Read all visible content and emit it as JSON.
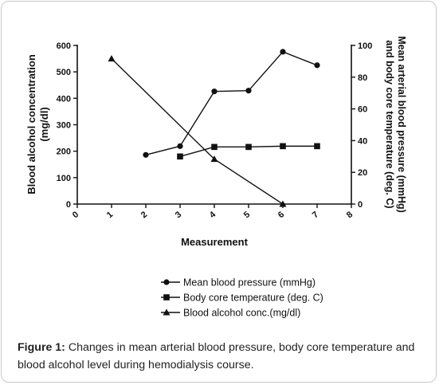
{
  "chart_data": {
    "type": "line",
    "xlabel": "Measurement",
    "ylabel_left": [
      "Blood alcohol concentration",
      "(mg/dl)"
    ],
    "ylabel_right": [
      "Mean arterial blood pressure (mmHg)",
      "and body core temperature (deg. C)"
    ],
    "xlim": [
      0,
      8
    ],
    "x_ticks": [
      "0",
      "1",
      "2",
      "3",
      "4",
      "5",
      "6",
      "7",
      "8"
    ],
    "ylim_left": [
      0,
      600
    ],
    "y_ticks_left": [
      "0",
      "100",
      "200",
      "300",
      "400",
      "500",
      "600"
    ],
    "ylim_right": [
      0,
      100
    ],
    "y_ticks_right": [
      "0",
      "20",
      "40",
      "60",
      "80",
      "100"
    ],
    "grid": false,
    "legend_position": "bottom",
    "series": [
      {
        "name": "Mean blood pressure (mmHg)",
        "axis": "right",
        "marker": "circle",
        "x": [
          2,
          3,
          4,
          5,
          6,
          7
        ],
        "y": [
          31,
          36.5,
          71,
          71.5,
          96,
          87.5
        ]
      },
      {
        "name": "Body core temperature (deg. C)",
        "axis": "right",
        "marker": "square",
        "x": [
          3,
          4,
          5,
          6,
          7
        ],
        "y": [
          30,
          36,
          36,
          36.5,
          36.5
        ]
      },
      {
        "name": "Blood alcohol conc.(mg/dl)",
        "axis": "left",
        "marker": "triangle",
        "x": [
          1,
          4,
          6
        ],
        "y": [
          550,
          170,
          0
        ]
      }
    ]
  },
  "caption": {
    "label": "Figure 1:",
    "text": " Changes in mean arterial blood pressure, body core temperature and blood alcohol level during hemodialysis course."
  }
}
